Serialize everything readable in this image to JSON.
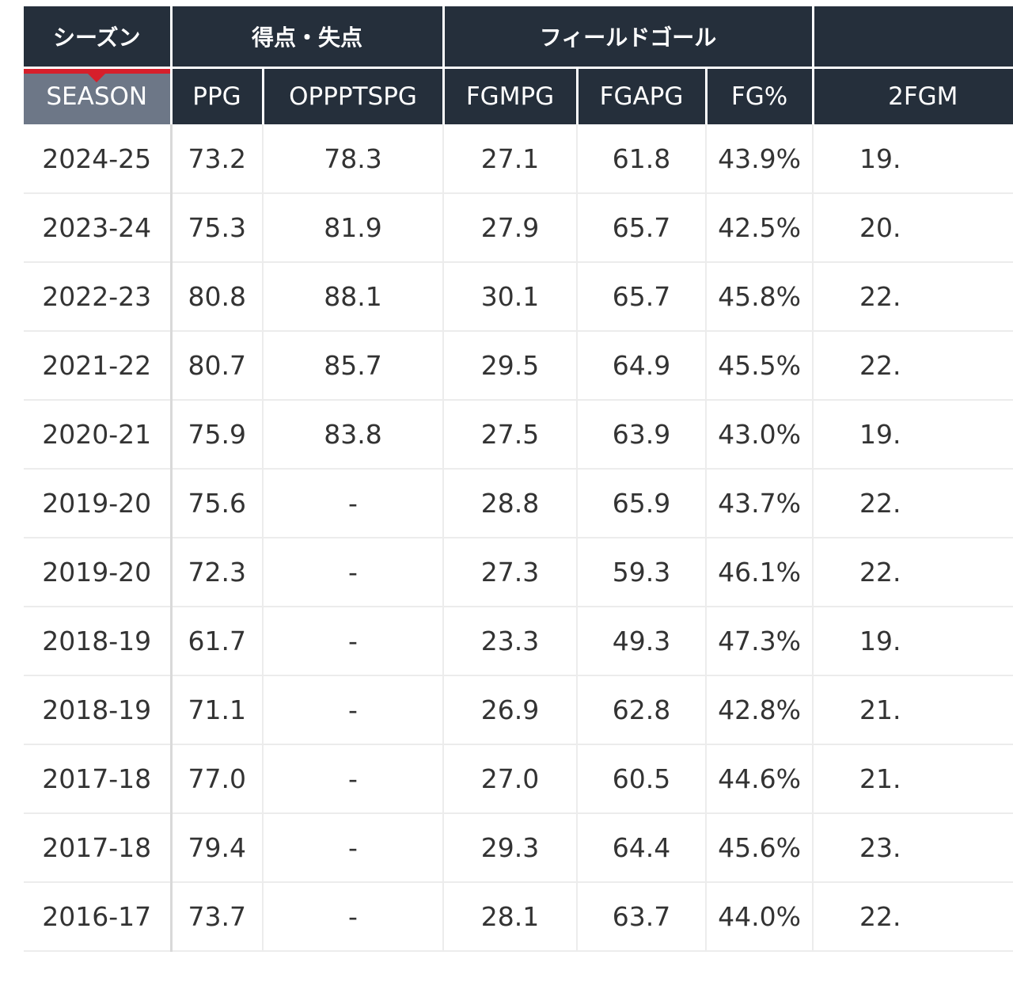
{
  "table": {
    "groups": {
      "season": "シーズン",
      "scoring": "得点・失点",
      "field_goal": "フィールドゴール",
      "next": ""
    },
    "columns": {
      "season": "SEASON",
      "ppg": "PPG",
      "oppptspg": "OPPPTSPG",
      "fgmpg": "FGMPG",
      "fgapg": "FGAPG",
      "fg_pct": "FG%",
      "two_fgm": "2FGM"
    },
    "rows": [
      {
        "season": "2024-25",
        "ppg": "73.2",
        "oppptspg": "78.3",
        "fgmpg": "27.1",
        "fgapg": "61.8",
        "fg_pct": "43.9%",
        "two_fgm": "19."
      },
      {
        "season": "2023-24",
        "ppg": "75.3",
        "oppptspg": "81.9",
        "fgmpg": "27.9",
        "fgapg": "65.7",
        "fg_pct": "42.5%",
        "two_fgm": "20."
      },
      {
        "season": "2022-23",
        "ppg": "80.8",
        "oppptspg": "88.1",
        "fgmpg": "30.1",
        "fgapg": "65.7",
        "fg_pct": "45.8%",
        "two_fgm": "22."
      },
      {
        "season": "2021-22",
        "ppg": "80.7",
        "oppptspg": "85.7",
        "fgmpg": "29.5",
        "fgapg": "64.9",
        "fg_pct": "45.5%",
        "two_fgm": "22."
      },
      {
        "season": "2020-21",
        "ppg": "75.9",
        "oppptspg": "83.8",
        "fgmpg": "27.5",
        "fgapg": "63.9",
        "fg_pct": "43.0%",
        "two_fgm": "19."
      },
      {
        "season": "2019-20",
        "ppg": "75.6",
        "oppptspg": "-",
        "fgmpg": "28.8",
        "fgapg": "65.9",
        "fg_pct": "43.7%",
        "two_fgm": "22."
      },
      {
        "season": "2019-20",
        "ppg": "72.3",
        "oppptspg": "-",
        "fgmpg": "27.3",
        "fgapg": "59.3",
        "fg_pct": "46.1%",
        "two_fgm": "22."
      },
      {
        "season": "2018-19",
        "ppg": "61.7",
        "oppptspg": "-",
        "fgmpg": "23.3",
        "fgapg": "49.3",
        "fg_pct": "47.3%",
        "two_fgm": "19."
      },
      {
        "season": "2018-19",
        "ppg": "71.1",
        "oppptspg": "-",
        "fgmpg": "26.9",
        "fgapg": "62.8",
        "fg_pct": "42.8%",
        "two_fgm": "21."
      },
      {
        "season": "2017-18",
        "ppg": "77.0",
        "oppptspg": "-",
        "fgmpg": "27.0",
        "fgapg": "60.5",
        "fg_pct": "44.6%",
        "two_fgm": "21."
      },
      {
        "season": "2017-18",
        "ppg": "79.4",
        "oppptspg": "-",
        "fgmpg": "29.3",
        "fgapg": "64.4",
        "fg_pct": "45.6%",
        "two_fgm": "23."
      },
      {
        "season": "2016-17",
        "ppg": "73.7",
        "oppptspg": "-",
        "fgmpg": "28.1",
        "fgapg": "63.7",
        "fg_pct": "44.0%",
        "two_fgm": "22."
      }
    ]
  },
  "colors": {
    "header_bg": "#252f3b",
    "active_header_bg": "#6d7787",
    "active_indicator": "#d61f2b",
    "row_border": "#ececec"
  }
}
